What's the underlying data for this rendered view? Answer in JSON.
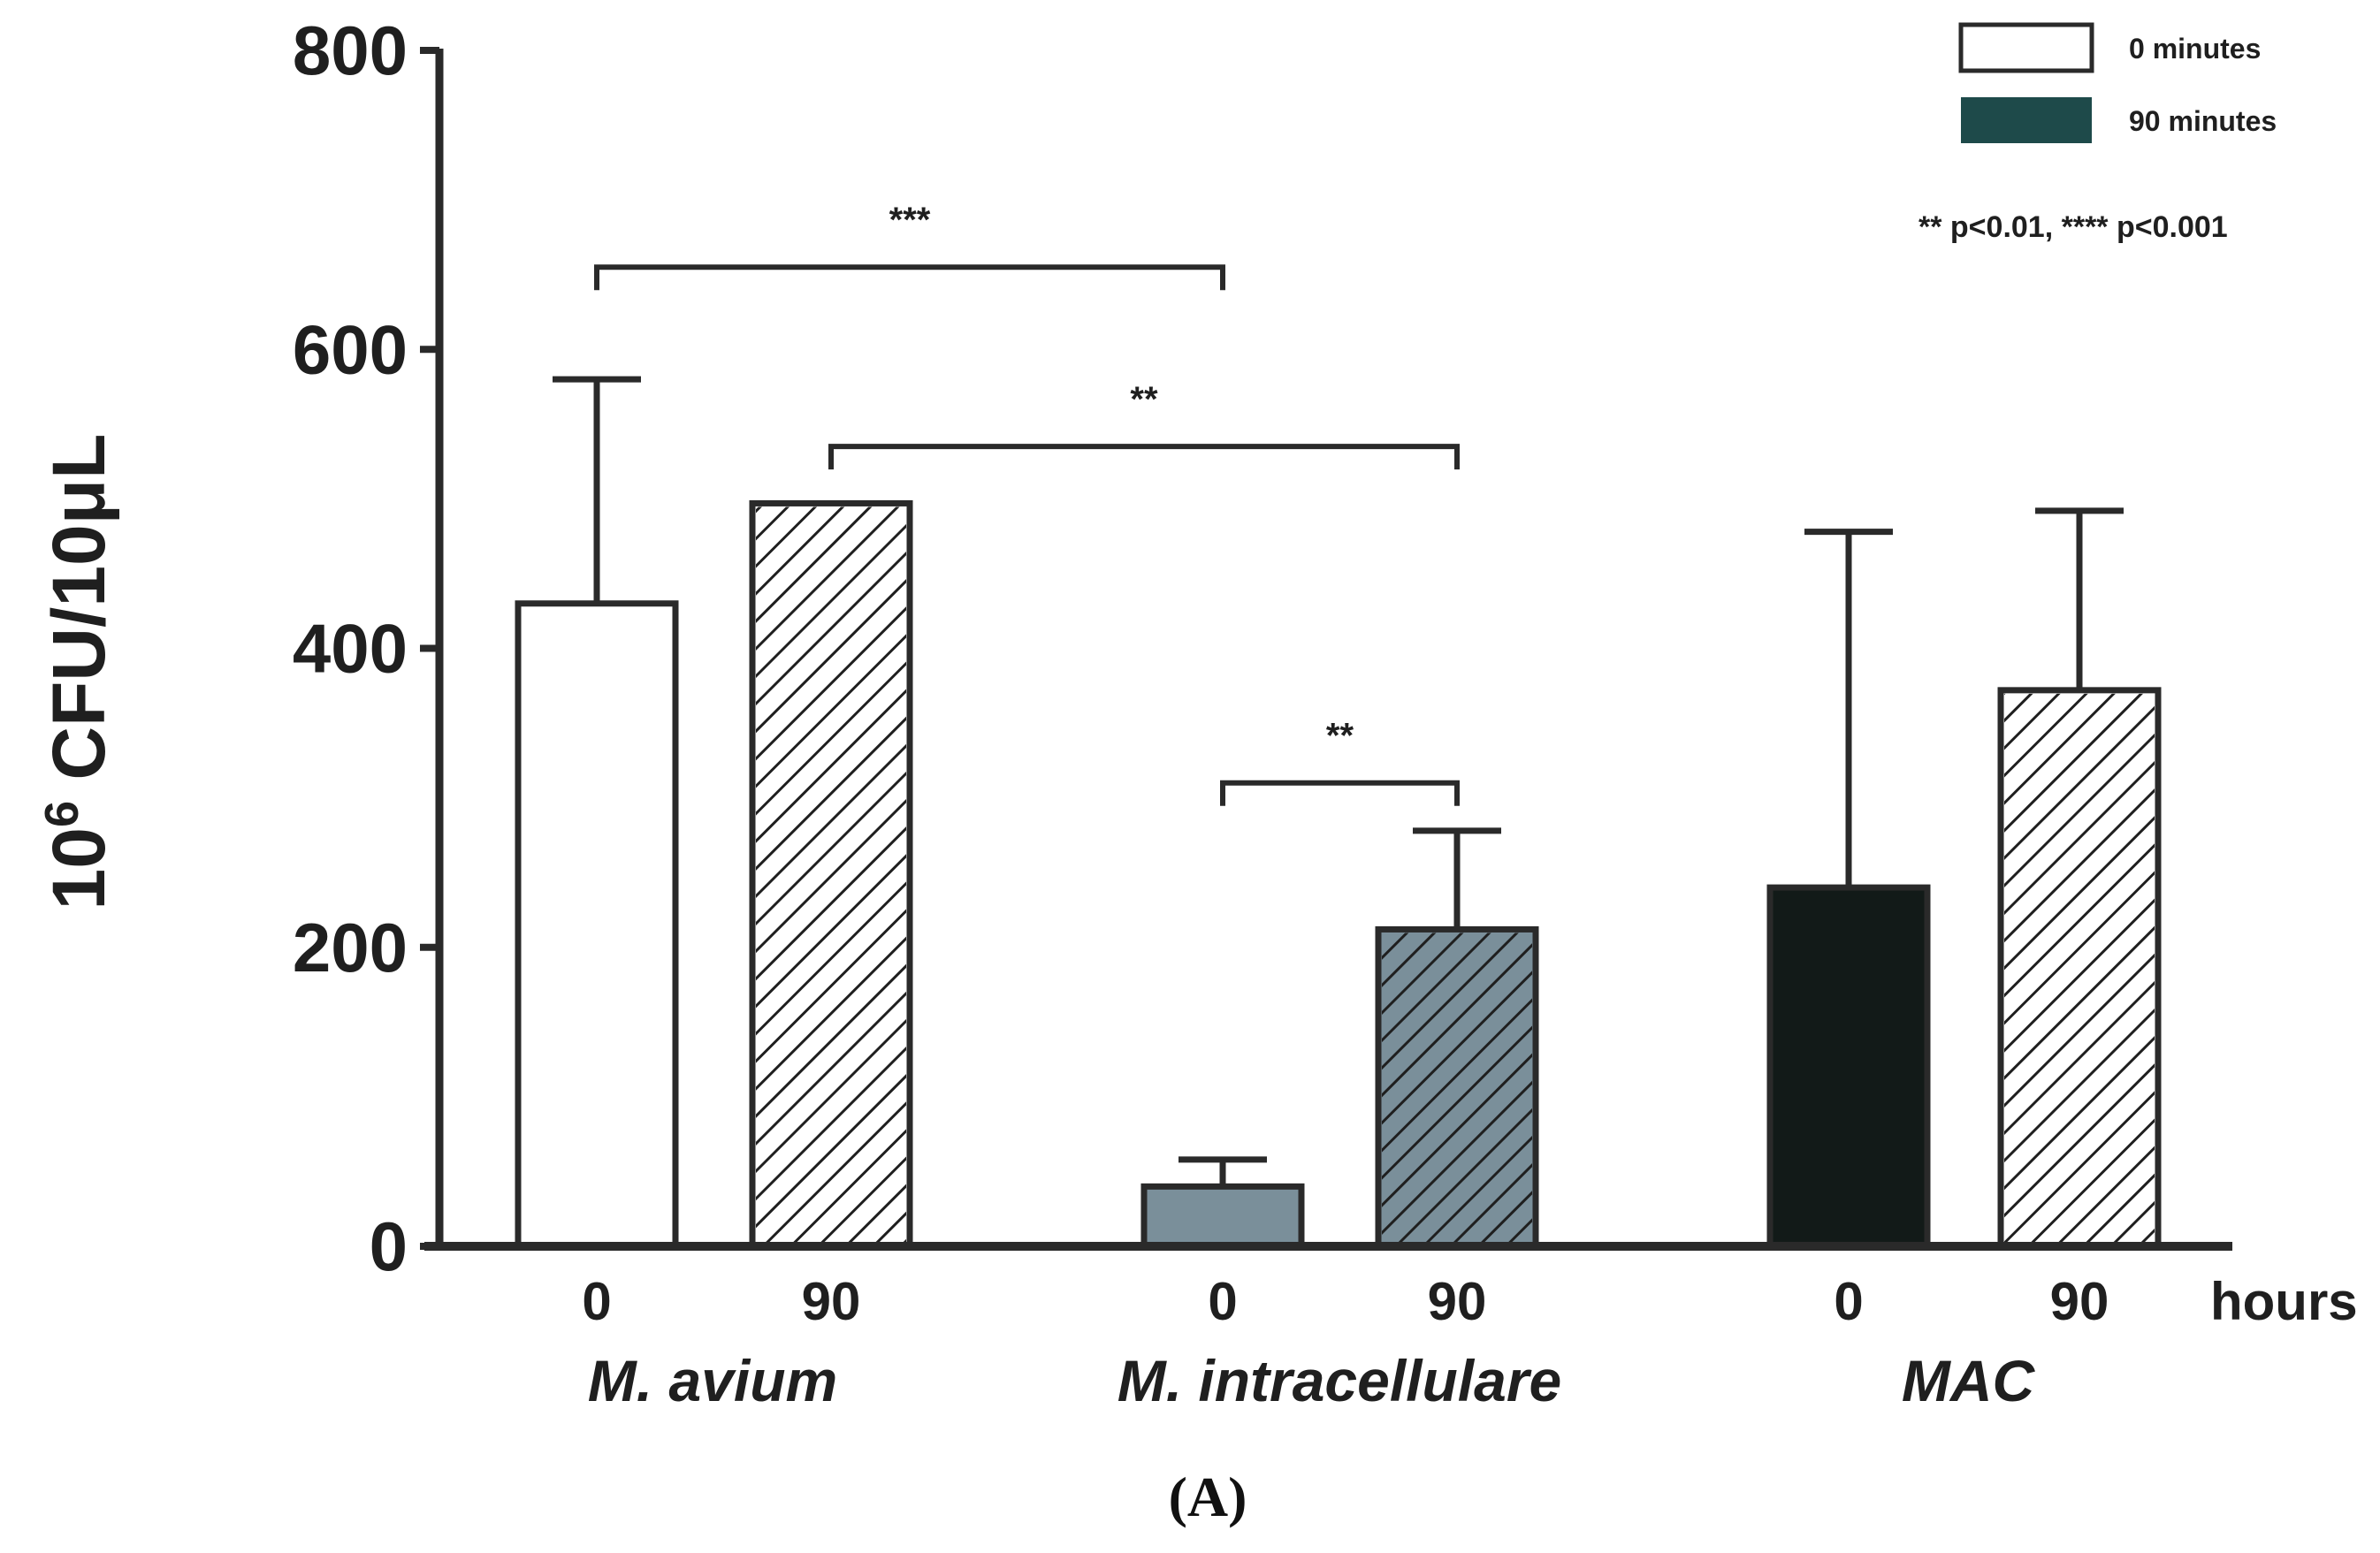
{
  "chart_data": {
    "type": "bar",
    "title": "",
    "ylabel_base": "10",
    "ylabel_exp": "6",
    "ylabel_rest": " CFU/10μL",
    "xlabel": "hours",
    "ylim": [
      0,
      800
    ],
    "yticks": [
      "0",
      "200",
      "400",
      "600",
      "800"
    ],
    "groups": [
      "M. avium",
      "M. intracellulare",
      "MAC"
    ],
    "bars": [
      {
        "group": "M. avium",
        "time": "0",
        "value": 430,
        "error": 150,
        "fill": "#ffffff",
        "hatch": false
      },
      {
        "group": "M. avium",
        "time": "90",
        "value": 497,
        "error": 0,
        "fill": "#ffffff",
        "hatch": true
      },
      {
        "group": "M. intracellulare",
        "time": "0",
        "value": 40,
        "error": 18,
        "fill": "#7a8f9a",
        "hatch": false
      },
      {
        "group": "M. intracellulare",
        "time": "90",
        "value": 212,
        "error": 66,
        "fill": "#7a8f9a",
        "hatch": true
      },
      {
        "group": "MAC",
        "time": "0",
        "value": 240,
        "error": 238,
        "fill": "#121a18",
        "hatch": false
      },
      {
        "group": "MAC",
        "time": "90",
        "value": 372,
        "error": 120,
        "fill": "#ffffff",
        "hatch": true
      }
    ],
    "significance": [
      {
        "from_bar": 0,
        "to_bar": 2,
        "level": 655,
        "label": "***"
      },
      {
        "from_bar": 1,
        "to_bar": 3,
        "level": 535,
        "label": "**"
      },
      {
        "from_bar": 2,
        "to_bar": 3,
        "level": 310,
        "label": "**"
      }
    ],
    "legend": [
      {
        "label": "0 minutes",
        "fill": "#ffffff"
      },
      {
        "label": "90 minutes",
        "fill": "#1e4a4a"
      }
    ],
    "legend_position": "top-right",
    "note": "** p<0.01, **** p<0.001",
    "panel_label": "(A)"
  }
}
